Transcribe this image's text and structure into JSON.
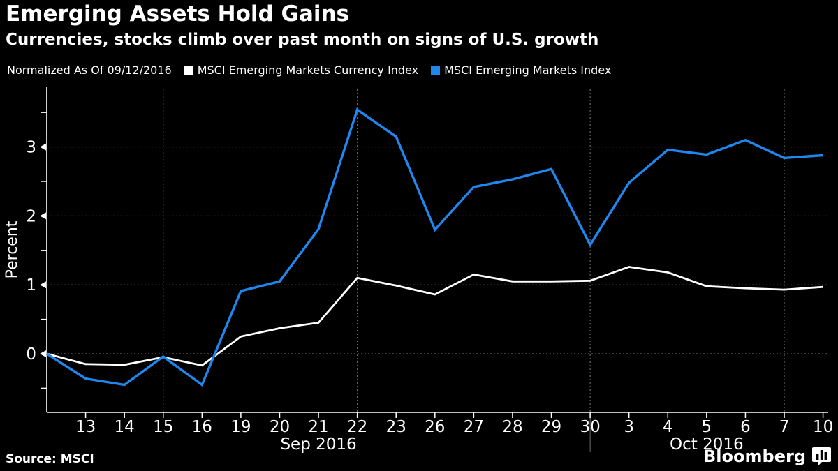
{
  "header": {
    "title": "Emerging Assets Hold Gains",
    "subtitle": "Currencies, stocks climb over past month on signs of U.S. growth"
  },
  "legend": {
    "note": "Normalized As Of 09/12/2016",
    "series": [
      {
        "label": "MSCI Emerging Markets Currency Index",
        "color": "#ffffff"
      },
      {
        "label": "MSCI Emerging Markets Index",
        "color": "#1e87f0"
      }
    ]
  },
  "footer": {
    "source": "Source: MSCI",
    "brand": "Bloomberg",
    "brand_icon": "bar-chart-speech-bubble-icon"
  },
  "chart_data": {
    "type": "line",
    "title": "Emerging Assets Hold Gains",
    "subtitle": "Currencies, stocks climb over past month on signs of U.S. growth",
    "normalize_note": "Normalized As Of 09/12/2016",
    "xlabel": "",
    "ylabel": "Percent",
    "ylim": [
      -0.85,
      3.84
    ],
    "y_ticks": [
      0,
      1,
      2,
      3
    ],
    "y_minor_ticks": [
      -0.5,
      0.5,
      1.5,
      2.5,
      3.5
    ],
    "grid": "dashed",
    "background": "#000000",
    "text_color": "#ffffff",
    "grid_color": "#777777",
    "x_points": [
      "09/12",
      "09/13",
      "09/14",
      "09/15",
      "09/16",
      "09/19",
      "09/20",
      "09/21",
      "09/22",
      "09/23",
      "09/26",
      "09/27",
      "09/28",
      "09/29",
      "09/30",
      "10/03",
      "10/04",
      "10/05",
      "10/06",
      "10/07",
      "10/10"
    ],
    "x_tick_labels": [
      "13",
      "14",
      "15",
      "16",
      "19",
      "20",
      "21",
      "22",
      "23",
      "26",
      "27",
      "28",
      "29",
      "30",
      "3",
      "4",
      "5",
      "6",
      "7",
      "10"
    ],
    "month_labels": [
      {
        "label": "Sep 2016",
        "point_index": 7
      },
      {
        "label": "Oct 2016",
        "point_index": 17
      }
    ],
    "grid_vertical_at": [
      "09/15",
      "09/22",
      "09/30",
      "10/07"
    ],
    "month_separator_at": "09/30",
    "series": [
      {
        "name": "MSCI Emerging Markets Currency Index",
        "color": "#ffffff",
        "values": [
          0,
          -0.15,
          -0.16,
          -0.05,
          -0.17,
          0.25,
          0.37,
          0.45,
          1.1,
          0.99,
          0.86,
          1.15,
          1.05,
          1.05,
          1.06,
          1.26,
          1.18,
          0.98,
          0.95,
          0.93,
          0.97
        ]
      },
      {
        "name": "MSCI Emerging Markets Index",
        "color": "#1e87f0",
        "values": [
          0,
          -0.36,
          -0.45,
          -0.04,
          -0.45,
          0.91,
          1.05,
          1.81,
          3.54,
          3.15,
          1.8,
          2.42,
          2.53,
          2.68,
          1.58,
          2.48,
          2.96,
          2.89,
          3.1,
          2.84,
          2.88
        ]
      }
    ]
  }
}
